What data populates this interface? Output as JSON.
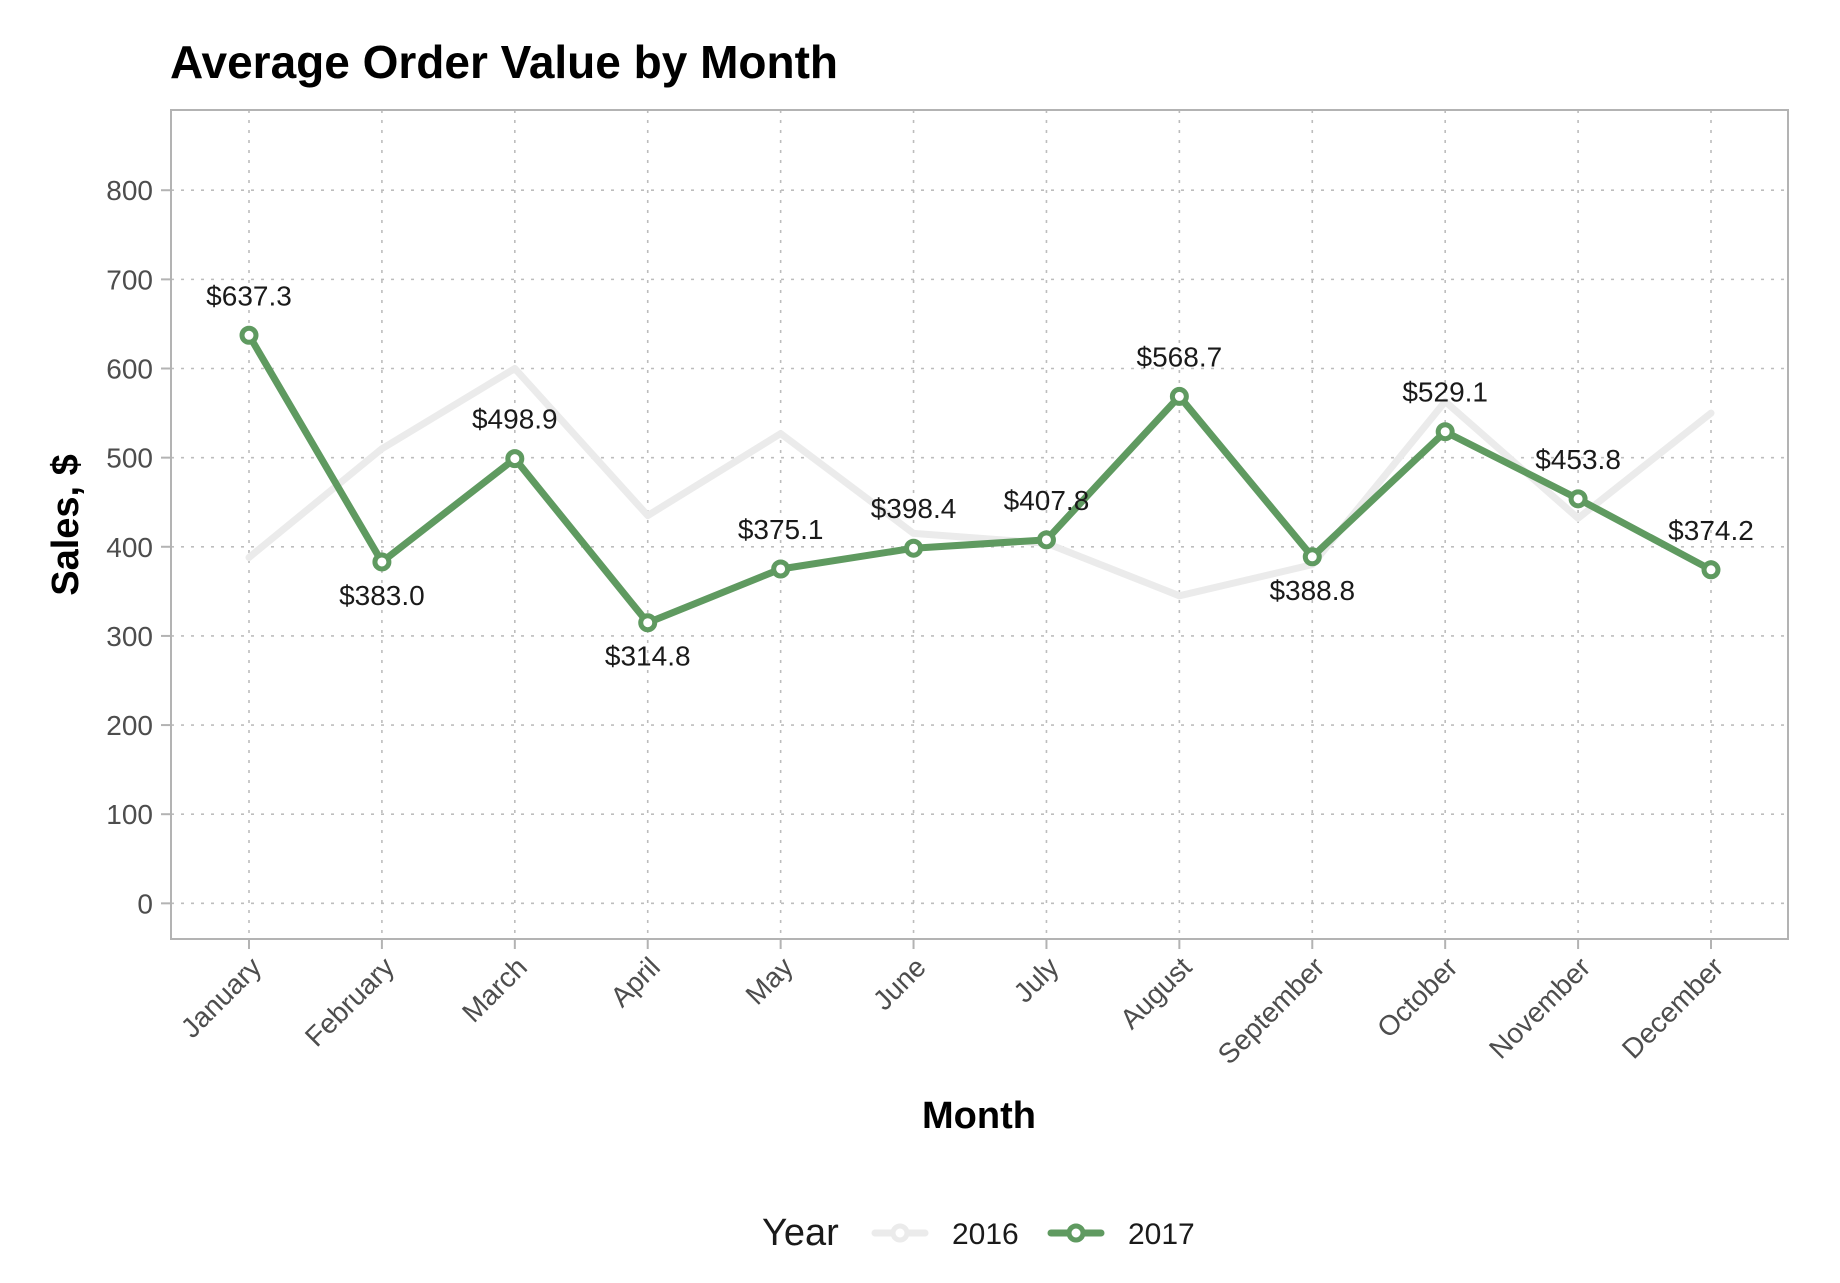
{
  "colors": {
    "series_2016": "#ebebeb",
    "series_2017": "#5f9a60"
  },
  "chart_data": {
    "type": "line",
    "title": "Average Order Value by Month",
    "xlabel": "Month",
    "ylabel": "Sales, $",
    "categories": [
      "January",
      "February",
      "March",
      "April",
      "May",
      "June",
      "July",
      "August",
      "September",
      "October",
      "November",
      "December"
    ],
    "ylim": [
      -40,
      890
    ],
    "yticks": [
      0,
      100,
      200,
      300,
      400,
      500,
      600,
      700,
      800
    ],
    "grid": true,
    "legend": {
      "title": "Year",
      "position": "bottom"
    },
    "series": [
      {
        "name": "2016",
        "values": [
          388,
          510,
          600,
          435,
          527,
          415,
          404,
          345,
          380,
          563,
          432,
          550
        ],
        "show_labels": false
      },
      {
        "name": "2017",
        "values": [
          637.3,
          383.0,
          498.9,
          314.8,
          375.1,
          398.4,
          407.8,
          568.7,
          388.8,
          529.1,
          453.8,
          374.2
        ],
        "show_labels": true
      }
    ],
    "data_labels": [
      "$637.3",
      "$383.0",
      "$498.9",
      "$314.8",
      "$375.1",
      "$398.4",
      "$407.8",
      "$568.7",
      "$388.8",
      "$529.1",
      "$453.8",
      "$374.2"
    ],
    "label_side": [
      "above",
      "below",
      "above",
      "below",
      "above",
      "above",
      "above",
      "above",
      "below",
      "above",
      "above",
      "above"
    ]
  }
}
